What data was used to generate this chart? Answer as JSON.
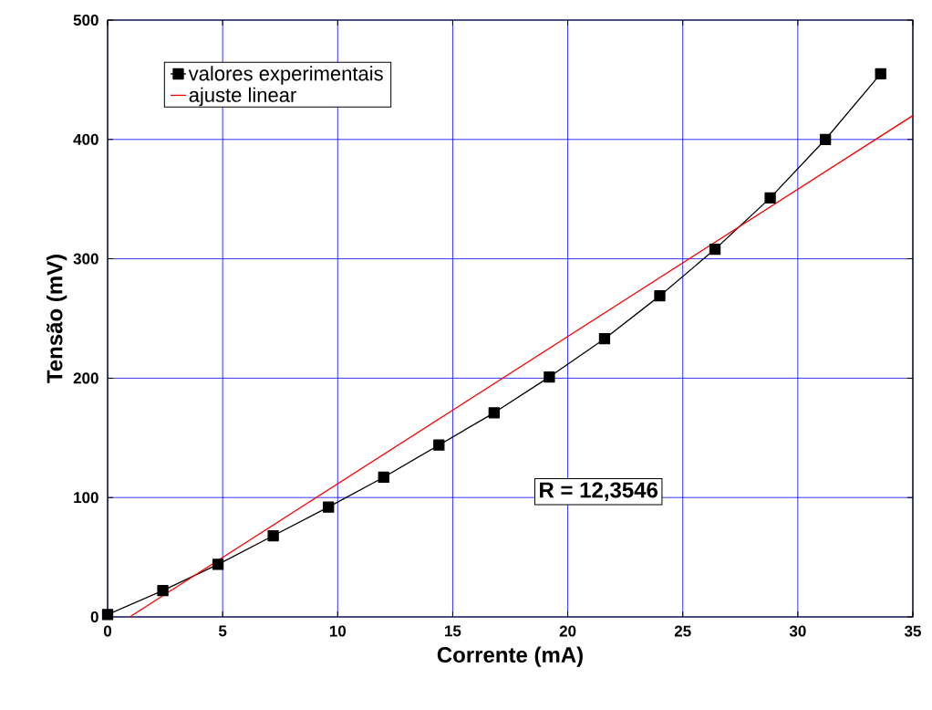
{
  "chart_data": {
    "type": "line",
    "xlabel": "Corrente (mA)",
    "ylabel": "Tensão (mV)",
    "xlim": [
      0,
      35
    ],
    "ylim": [
      0,
      500
    ],
    "xticks": [
      0,
      5,
      10,
      15,
      20,
      25,
      30,
      35
    ],
    "yticks": [
      0,
      100,
      200,
      300,
      400,
      500
    ],
    "grid": true,
    "legend": "top left",
    "line_style": "solid",
    "series": [
      {
        "name": "valores experimentais",
        "color": "#000000",
        "marker": "square",
        "x": [
          0,
          2.4,
          4.8,
          7.2,
          9.6,
          12,
          14.4,
          16.8,
          19.2,
          21.6,
          24,
          26.4,
          28.8,
          31.2,
          33.6
        ],
        "values": [
          2,
          22,
          44,
          68,
          92,
          117,
          144,
          171,
          201,
          233,
          269,
          308,
          351,
          400,
          455
        ]
      },
      {
        "name": "ajuste linear",
        "color": "#ff0000",
        "marker": "none",
        "x": [
          0.96,
          35
        ],
        "values": [
          0,
          420
        ]
      }
    ],
    "annotations": [
      "R = 12,3546"
    ]
  }
}
